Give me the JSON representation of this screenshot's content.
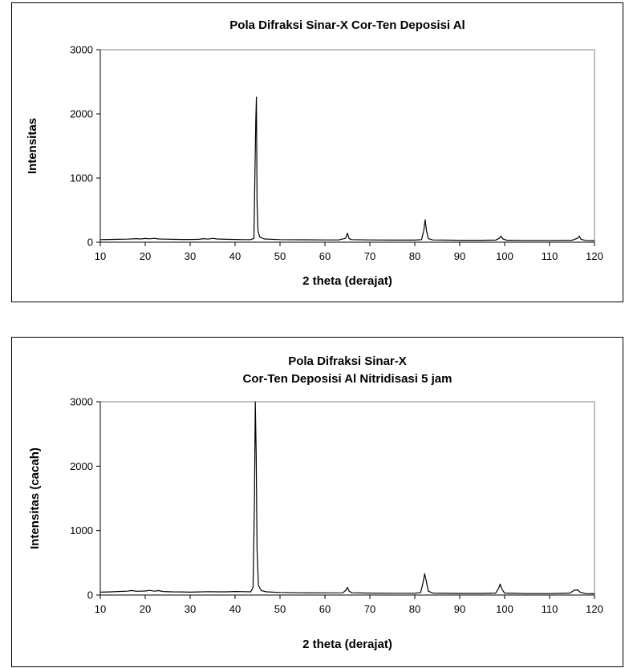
{
  "chart_data": [
    {
      "type": "line",
      "title_lines": [
        "Pola Difraksi Sinar-X Cor-Ten Deposisi Al"
      ],
      "xlabel": "2 theta (derajat)",
      "ylabel": "Intensitas",
      "xlim": [
        10,
        120
      ],
      "ylim": [
        0,
        3000
      ],
      "xticks": [
        10,
        20,
        30,
        40,
        50,
        60,
        70,
        80,
        90,
        100,
        110,
        120
      ],
      "yticks": [
        0,
        1000,
        2000,
        3000
      ],
      "grid": false,
      "legend": "none",
      "series": [
        {
          "color": "#000000",
          "points": [
            [
              10,
              40
            ],
            [
              12,
              42
            ],
            [
              14,
              45
            ],
            [
              16,
              48
            ],
            [
              18,
              55
            ],
            [
              19,
              50
            ],
            [
              20,
              58
            ],
            [
              21,
              52
            ],
            [
              22,
              60
            ],
            [
              23,
              50
            ],
            [
              24,
              48
            ],
            [
              26,
              45
            ],
            [
              28,
              43
            ],
            [
              30,
              42
            ],
            [
              32,
              45
            ],
            [
              33,
              55
            ],
            [
              34,
              48
            ],
            [
              35,
              60
            ],
            [
              36,
              50
            ],
            [
              38,
              45
            ],
            [
              40,
              42
            ],
            [
              42,
              40
            ],
            [
              43.5,
              40
            ],
            [
              44.2,
              60
            ],
            [
              44.6,
              1900
            ],
            [
              44.75,
              2260
            ],
            [
              44.9,
              600
            ],
            [
              45.1,
              170
            ],
            [
              45.5,
              80
            ],
            [
              46.5,
              50
            ],
            [
              50,
              40
            ],
            [
              55,
              38
            ],
            [
              60,
              35
            ],
            [
              63,
              35
            ],
            [
              64.6,
              60
            ],
            [
              65.0,
              140
            ],
            [
              65.4,
              55
            ],
            [
              66,
              40
            ],
            [
              70,
              35
            ],
            [
              75,
              32
            ],
            [
              80,
              32
            ],
            [
              81.5,
              40
            ],
            [
              82.0,
              180
            ],
            [
              82.3,
              350
            ],
            [
              82.6,
              180
            ],
            [
              83.0,
              55
            ],
            [
              84,
              35
            ],
            [
              90,
              30
            ],
            [
              95,
              30
            ],
            [
              98,
              32
            ],
            [
              98.8,
              60
            ],
            [
              99.2,
              95
            ],
            [
              99.6,
              50
            ],
            [
              100.5,
              30
            ],
            [
              105,
              28
            ],
            [
              110,
              28
            ],
            [
              115,
              30
            ],
            [
              116.2,
              60
            ],
            [
              116.6,
              95
            ],
            [
              117.0,
              45
            ],
            [
              118,
              28
            ],
            [
              120,
              25
            ]
          ]
        }
      ]
    },
    {
      "type": "line",
      "title_lines": [
        "Pola Difraksi Sinar-X",
        "Cor-Ten Deposisi Al Nitridisasi 5 jam"
      ],
      "xlabel": "2 theta (derajat)",
      "ylabel": "Intensitas (cacah)",
      "xlim": [
        10,
        120
      ],
      "ylim": [
        0,
        3000
      ],
      "xticks": [
        10,
        20,
        30,
        40,
        50,
        60,
        70,
        80,
        90,
        100,
        110,
        120
      ],
      "yticks": [
        0,
        1000,
        2000,
        3000
      ],
      "grid": false,
      "legend": "none",
      "series": [
        {
          "color": "#000000",
          "points": [
            [
              10,
              45
            ],
            [
              12,
              48
            ],
            [
              14,
              55
            ],
            [
              16,
              60
            ],
            [
              17,
              70
            ],
            [
              18,
              58
            ],
            [
              20,
              62
            ],
            [
              21,
              72
            ],
            [
              22,
              60
            ],
            [
              23,
              68
            ],
            [
              24,
              55
            ],
            [
              26,
              50
            ],
            [
              28,
              48
            ],
            [
              30,
              45
            ],
            [
              32,
              48
            ],
            [
              34,
              52
            ],
            [
              36,
              50
            ],
            [
              38,
              50
            ],
            [
              40,
              55
            ],
            [
              42,
              52
            ],
            [
              43.5,
              50
            ],
            [
              44.0,
              120
            ],
            [
              44.3,
              1400
            ],
            [
              44.5,
              3000
            ],
            [
              44.7,
              2200
            ],
            [
              44.9,
              700
            ],
            [
              45.2,
              150
            ],
            [
              45.8,
              70
            ],
            [
              47,
              50
            ],
            [
              50,
              40
            ],
            [
              55,
              35
            ],
            [
              60,
              33
            ],
            [
              64.0,
              35
            ],
            [
              64.6,
              70
            ],
            [
              65.0,
              120
            ],
            [
              65.4,
              60
            ],
            [
              66,
              35
            ],
            [
              70,
              30
            ],
            [
              75,
              28
            ],
            [
              80,
              28
            ],
            [
              81.3,
              40
            ],
            [
              81.8,
              180
            ],
            [
              82.2,
              330
            ],
            [
              82.6,
              200
            ],
            [
              83.0,
              60
            ],
            [
              84,
              30
            ],
            [
              90,
              25
            ],
            [
              95,
              25
            ],
            [
              98.0,
              30
            ],
            [
              98.7,
              110
            ],
            [
              99.0,
              170
            ],
            [
              99.4,
              90
            ],
            [
              100.0,
              30
            ],
            [
              105,
              22
            ],
            [
              110,
              22
            ],
            [
              114.5,
              30
            ],
            [
              115.5,
              75
            ],
            [
              116.2,
              80
            ],
            [
              116.8,
              45
            ],
            [
              118,
              22
            ],
            [
              120,
              20
            ]
          ]
        }
      ]
    }
  ]
}
